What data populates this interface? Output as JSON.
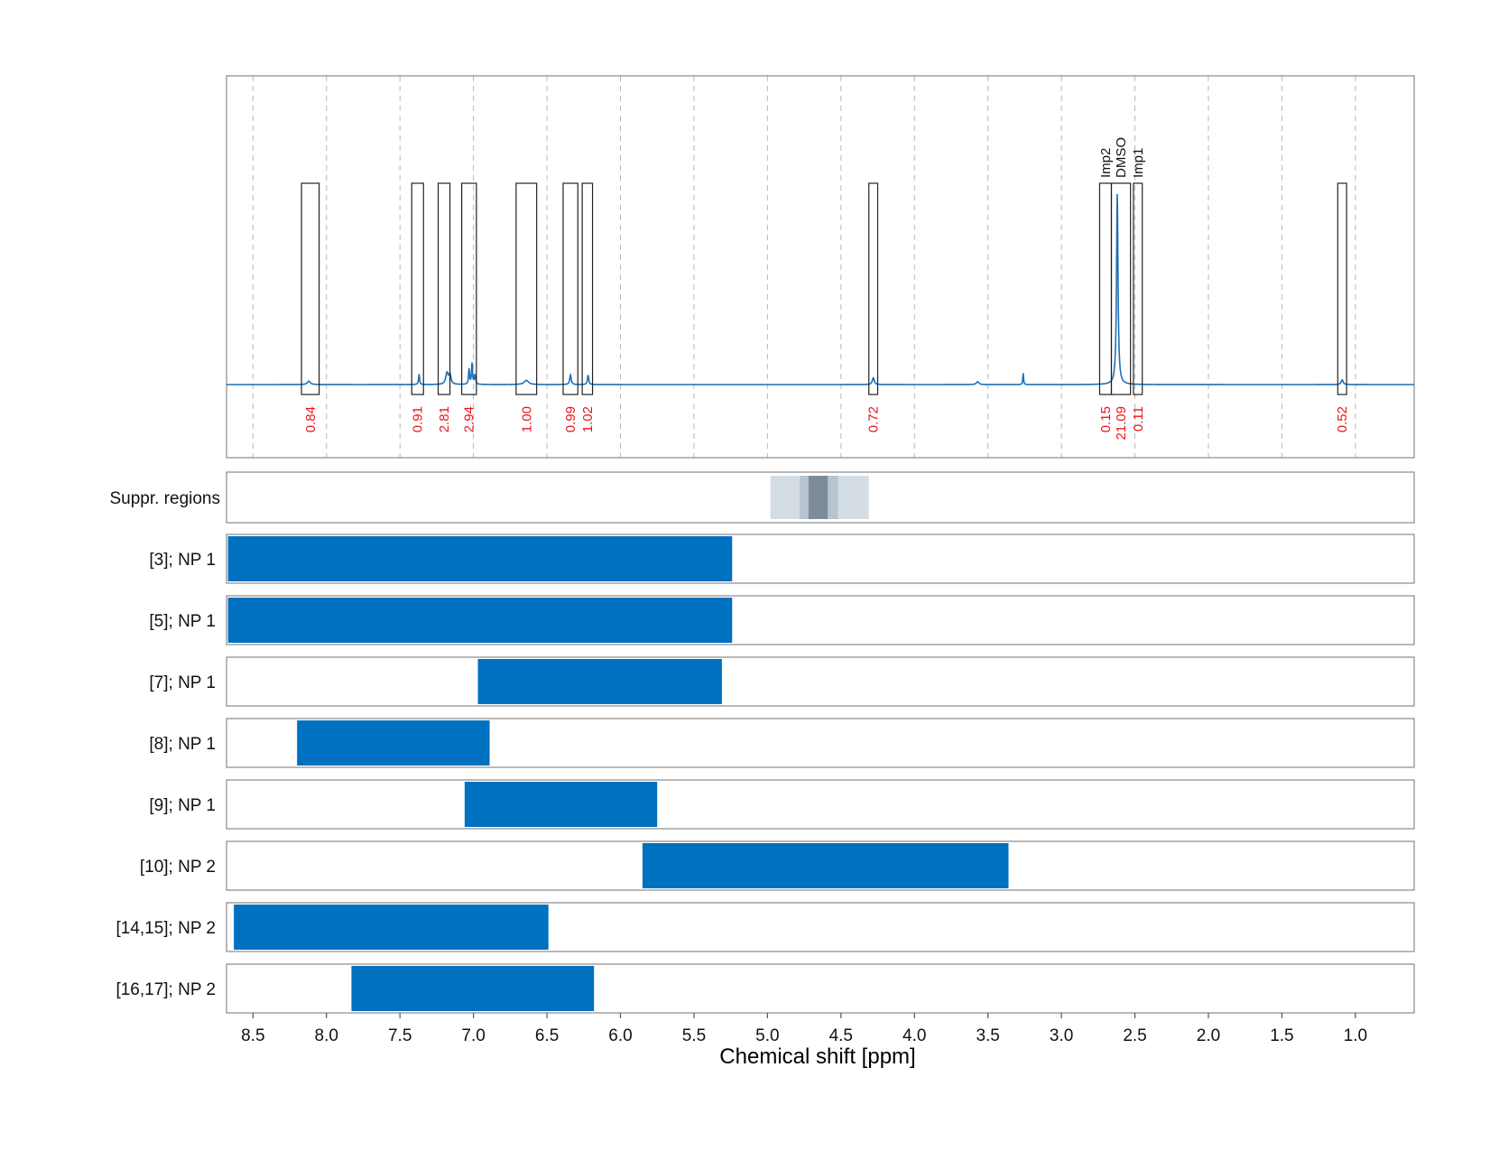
{
  "chart_data": {
    "type": "nmr-spectrum-with-range-bars",
    "xlabel": "Chemical shift [ppm]",
    "xlim": [
      8.68,
      0.6
    ],
    "x_ticks": [
      8.5,
      8.0,
      7.5,
      7.0,
      6.5,
      6.0,
      5.5,
      5.0,
      4.5,
      4.0,
      3.5,
      3.0,
      2.5,
      2.0,
      1.5,
      1.0
    ],
    "x_tick_labels": [
      "8.5",
      "8.0",
      "7.5",
      "7.0",
      "6.5",
      "6.0",
      "5.5",
      "5.0",
      "4.5",
      "4.0",
      "3.5",
      "3.0",
      "2.5",
      "2.0",
      "1.5",
      "1.0"
    ],
    "spectrum": {
      "color": "#1f6fb4",
      "baseline": 0.0,
      "peaks": [
        {
          "ppm": 8.12,
          "height": 0.018,
          "width": 0.012
        },
        {
          "ppm": 7.37,
          "height": 0.055,
          "width": 0.004
        },
        {
          "ppm": 7.18,
          "height": 0.06,
          "width": 0.01
        },
        {
          "ppm": 7.16,
          "height": 0.05,
          "width": 0.008
        },
        {
          "ppm": 7.03,
          "height": 0.08,
          "width": 0.004
        },
        {
          "ppm": 7.01,
          "height": 0.11,
          "width": 0.004
        },
        {
          "ppm": 6.99,
          "height": 0.05,
          "width": 0.005
        },
        {
          "ppm": 6.64,
          "height": 0.022,
          "width": 0.018
        },
        {
          "ppm": 6.34,
          "height": 0.05,
          "width": 0.006
        },
        {
          "ppm": 6.22,
          "height": 0.05,
          "width": 0.005
        },
        {
          "ppm": 4.28,
          "height": 0.035,
          "width": 0.008
        },
        {
          "ppm": 3.57,
          "height": 0.015,
          "width": 0.01
        },
        {
          "ppm": 3.26,
          "height": 0.06,
          "width": 0.003
        },
        {
          "ppm": 2.62,
          "height": 1.0,
          "width": 0.006
        },
        {
          "ppm": 1.09,
          "height": 0.025,
          "width": 0.008
        }
      ]
    },
    "integration_regions": [
      {
        "start": 8.17,
        "end": 8.05,
        "value": "0.84",
        "label": ""
      },
      {
        "start": 7.42,
        "end": 7.34,
        "value": "0.91",
        "label": ""
      },
      {
        "start": 7.24,
        "end": 7.16,
        "value": "2.81",
        "label": ""
      },
      {
        "start": 7.08,
        "end": 6.98,
        "value": "2.94",
        "label": ""
      },
      {
        "start": 6.71,
        "end": 6.57,
        "value": "1.00",
        "label": ""
      },
      {
        "start": 6.39,
        "end": 6.29,
        "value": "0.99",
        "label": ""
      },
      {
        "start": 6.26,
        "end": 6.19,
        "value": "1.02",
        "label": ""
      },
      {
        "start": 4.31,
        "end": 4.25,
        "value": "0.72",
        "label": ""
      },
      {
        "start": 2.74,
        "end": 2.66,
        "value": "0.15",
        "label": "Imp2"
      },
      {
        "start": 2.66,
        "end": 2.53,
        "value": "21.09",
        "label": "DMSO"
      },
      {
        "start": 2.51,
        "end": 2.45,
        "value": "0.11",
        "label": "Imp1"
      },
      {
        "start": 1.12,
        "end": 1.06,
        "value": "0.52",
        "label": ""
      }
    ],
    "suppressed_regions": {
      "label": "Suppr. regions",
      "bands": [
        {
          "start": 4.98,
          "end": 4.31,
          "color": "#d5dde4"
        },
        {
          "start": 4.78,
          "end": 4.52,
          "color": "#b7c3cd"
        },
        {
          "start": 4.72,
          "end": 4.59,
          "color": "#7d8c99"
        }
      ]
    },
    "range_bars": {
      "color": "#0070c0",
      "rows": [
        {
          "label": "[3]; NP 1",
          "start": 8.67,
          "end": 5.24
        },
        {
          "label": "[5]; NP 1",
          "start": 8.67,
          "end": 5.24
        },
        {
          "label": "[7]; NP 1",
          "start": 6.97,
          "end": 5.31
        },
        {
          "label": "[8]; NP 1",
          "start": 8.2,
          "end": 6.89
        },
        {
          "label": "[9]; NP 1",
          "start": 7.06,
          "end": 5.75
        },
        {
          "label": "[10]; NP 2",
          "start": 5.85,
          "end": 3.36
        },
        {
          "label": "[14,15]; NP 2",
          "start": 8.63,
          "end": 6.49
        },
        {
          "label": "[16,17]; NP 2",
          "start": 7.83,
          "end": 6.18
        }
      ]
    }
  }
}
